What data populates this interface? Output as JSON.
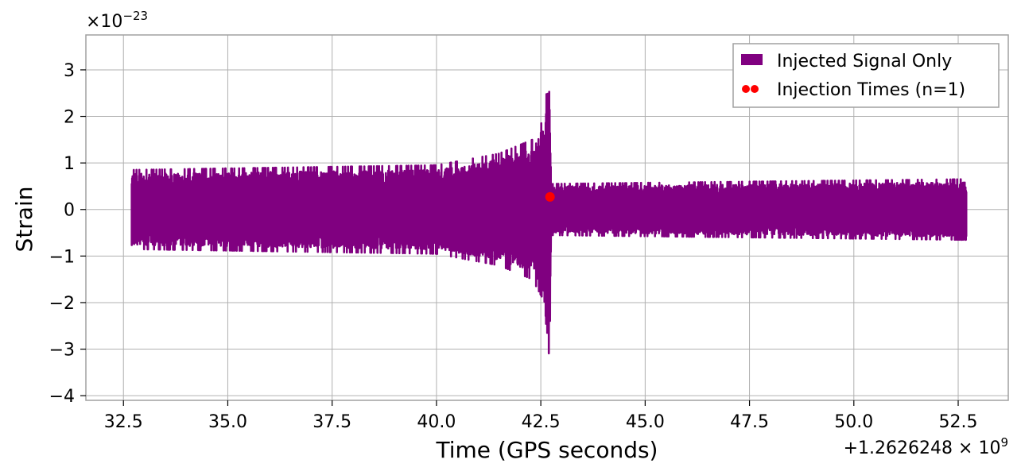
{
  "chart_data": {
    "type": "line",
    "xlabel": "Time (GPS seconds)",
    "ylabel": "Strain",
    "x_offset_label": "+1.2626248 × 10",
    "x_offset_exp": "9",
    "y_scale_label": "×10",
    "y_scale_exp": "−23",
    "xlim": [
      31.6,
      53.7
    ],
    "ylim": [
      -4.1,
      3.75
    ],
    "x_ticks": [
      32.5,
      35.0,
      37.5,
      40.0,
      42.5,
      45.0,
      47.5,
      50.0,
      52.5
    ],
    "x_tick_labels": [
      "32.5",
      "35.0",
      "37.5",
      "40.0",
      "42.5",
      "45.0",
      "47.5",
      "50.0",
      "52.5"
    ],
    "y_ticks": [
      3,
      2,
      1,
      0,
      -1,
      -2,
      -3,
      -4
    ],
    "y_tick_labels": [
      "3",
      "2",
      "1",
      "0",
      "−1",
      "−2",
      "−3",
      "−4"
    ],
    "grid": true,
    "legend_position": "top-right",
    "series": [
      {
        "name": "Injected Signal Only",
        "kind": "line",
        "color": "#800080",
        "x_range": [
          32.7,
          52.7
        ],
        "envelope": [
          {
            "x": 32.7,
            "max": 0.85,
            "min": -0.85
          },
          {
            "x": 40.0,
            "max": 0.95,
            "min": -0.95
          },
          {
            "x": 41.5,
            "max": 1.2,
            "min": -1.2
          },
          {
            "x": 42.3,
            "max": 1.5,
            "min": -1.5
          },
          {
            "x": 42.6,
            "max": 2.0,
            "min": -2.0
          },
          {
            "x": 42.7,
            "max": 3.35,
            "min": -3.75
          },
          {
            "x": 42.75,
            "max": 0.55,
            "min": -0.55
          },
          {
            "x": 52.7,
            "max": 0.65,
            "min": -0.65
          }
        ]
      },
      {
        "name": "Injection Times (n=1)",
        "kind": "scatter",
        "color": "#ff0000",
        "points": [
          {
            "x": 42.72,
            "y": 0.27
          }
        ]
      }
    ]
  }
}
